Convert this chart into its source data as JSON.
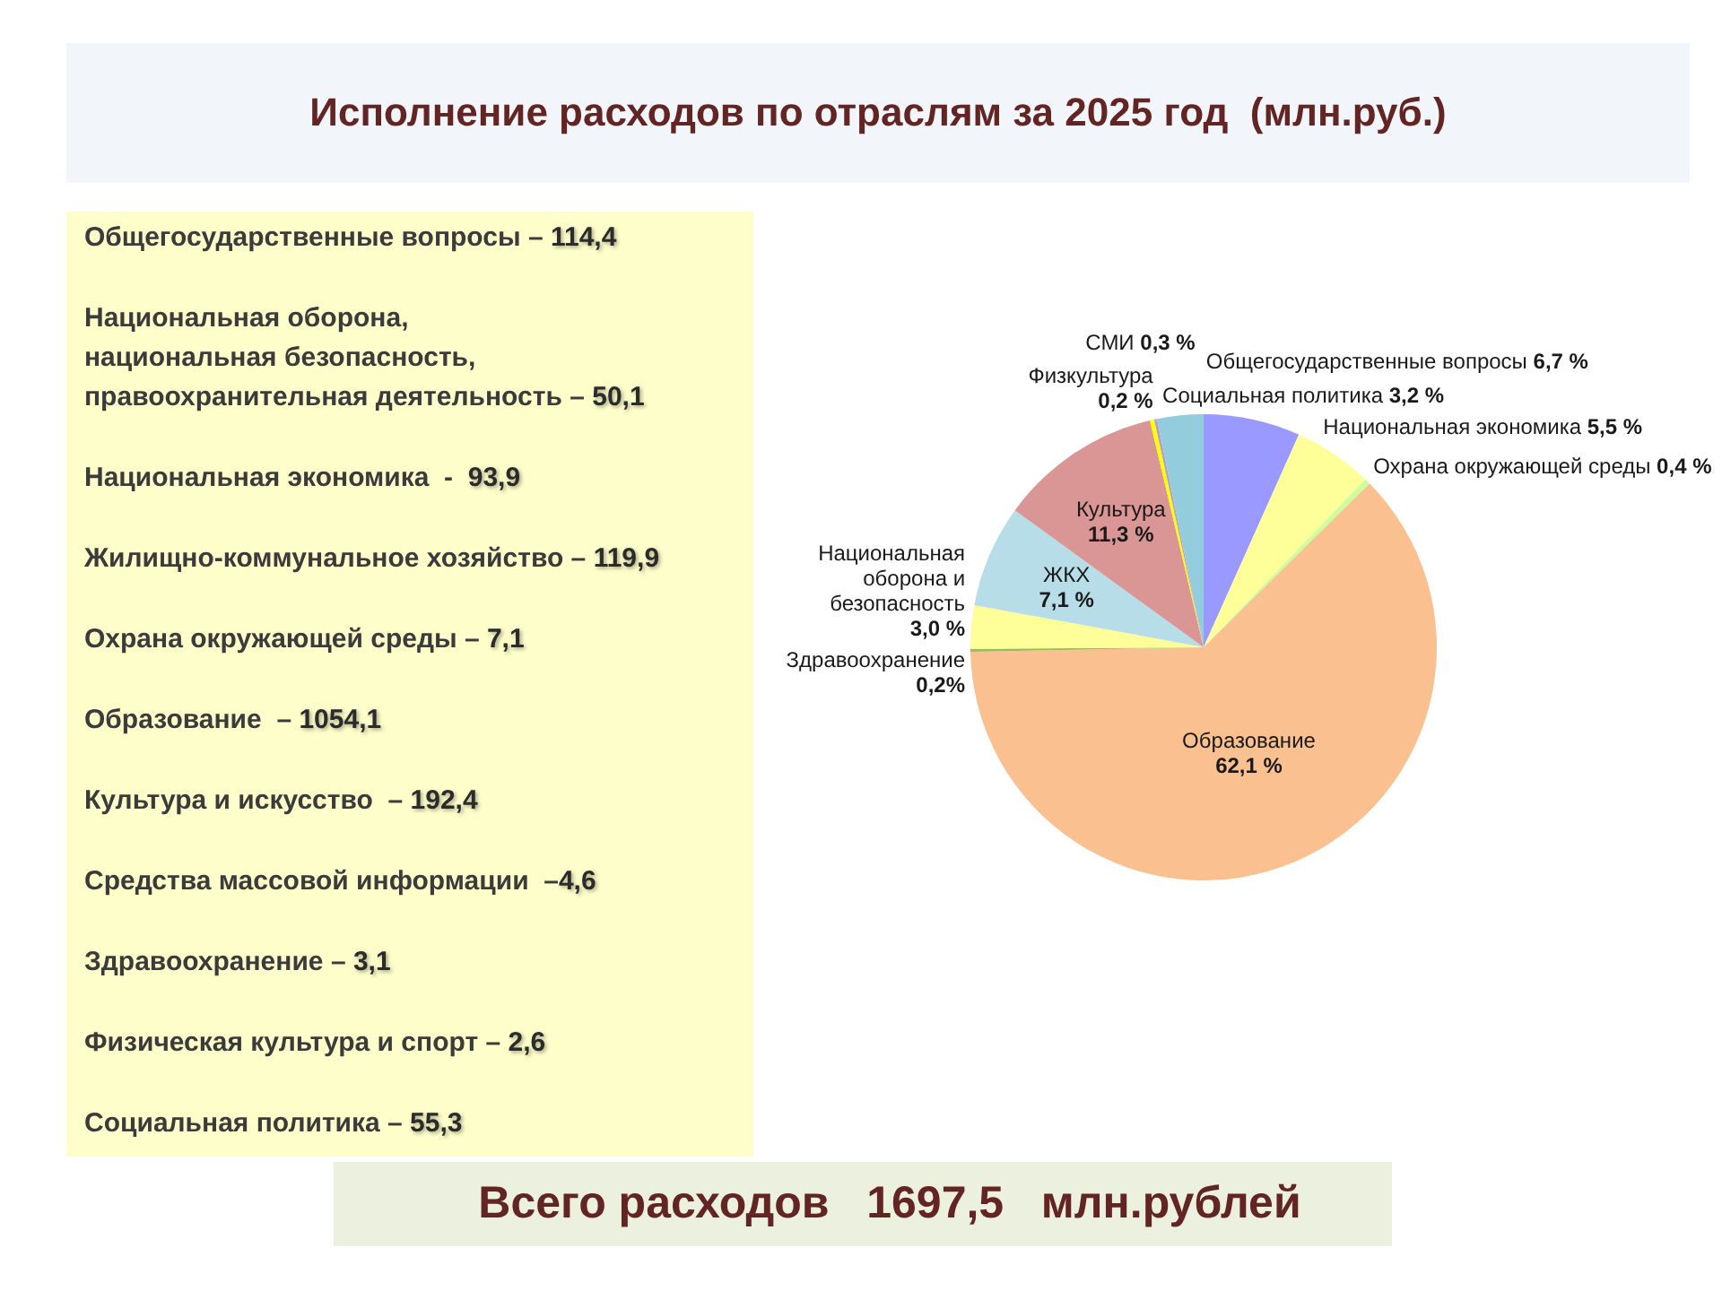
{
  "chart_data": {
    "type": "pie",
    "title": "Исполнение расходов по отраслям за 2025 год  (млн.руб.)",
    "categories": [
      "Общегосударственные вопросы",
      "Национальная экономика",
      "Охрана окружающей среды",
      "Образование",
      "Здравоохранение",
      "Национальная оборона и безопасность",
      "ЖКХ",
      "Культура",
      "СМИ",
      "Физкультура",
      "Социальная политика"
    ],
    "values": [
      6.7,
      5.5,
      0.4,
      62.1,
      0.2,
      3.0,
      7.1,
      11.3,
      0.3,
      0.2,
      3.2
    ],
    "value_labels": [
      "6,7 %",
      "5,5 %",
      "0,4 %",
      "62,1 %",
      "0,2%",
      "3,0 %",
      "7,1 %",
      "11,3 %",
      "0,3 %",
      "0,2 %",
      "3,2 %"
    ],
    "colors": [
      "#9999ff",
      "#ffff99",
      "#ccff99",
      "#fac090",
      "#9bbb59",
      "#ffff99",
      "#b7dee8",
      "#d99694",
      "#ffff00",
      "#b3a2c7",
      "#93cddd"
    ],
    "annotations": [
      "Общегосударственные вопросы – 114,4",
      "Национальная оборона,\nнациональная безопасность,\nправоохранительная деятельность – 50,1",
      "Национальная экономика  -  93,9",
      "Жилищно-коммунальное хозяйство – 119,9",
      "Охрана окружающей среды – 7,1",
      "Образование  – 1054,1",
      "Культура и искусство  – 192,4",
      "Средства массовой информации  –4,6",
      "Здравоохранение – 3,1",
      "Физическая культура и спорт – 2,6",
      "Социальная политика – 55,3",
      "Всего расходов   1697,5   млн.рублей"
    ]
  }
}
